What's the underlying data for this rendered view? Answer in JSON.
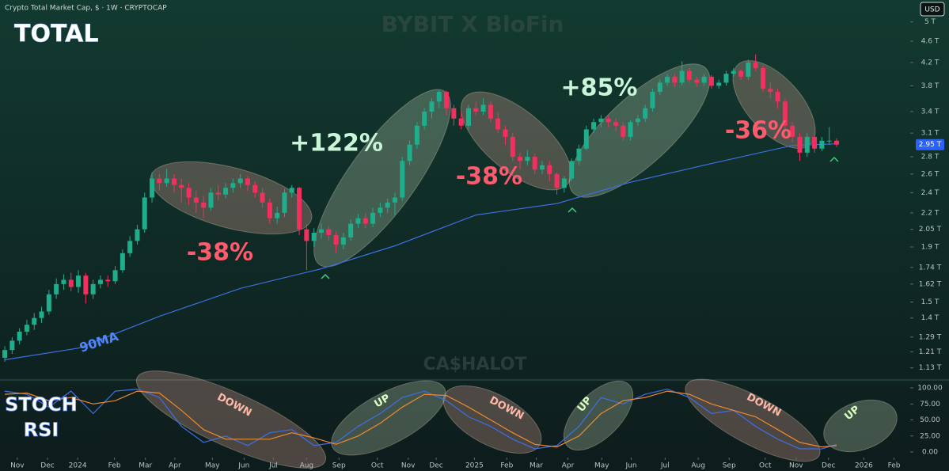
{
  "header": "Crypto Total Market Cap, $ · 1W · CRYPTOCAP",
  "currency": "USD",
  "watermarks": [
    "BYBIT X BloFin",
    "CA$HALOT"
  ],
  "chart_data": [
    {
      "type": "candlestick",
      "title": "TOTAL",
      "log_scale": true,
      "up_color": "#1fae8c",
      "down_color": "#f2305f",
      "xlim": [
        -0.65,
        123.0
      ],
      "ylim": [
        1.08,
        5.22
      ],
      "yticks": [
        {
          "value": 5,
          "label": "5 T"
        },
        {
          "value": 4.6,
          "label": "4.6 T"
        },
        {
          "value": 4.2,
          "label": "4.2 T"
        },
        {
          "value": 3.8,
          "label": "3.8 T"
        },
        {
          "value": 3.4,
          "label": "3.4 T"
        },
        {
          "value": 3.1,
          "label": "3.1 T"
        },
        {
          "value": 2.8,
          "label": "2.8 T"
        },
        {
          "value": 2.6,
          "label": "2.6 T"
        },
        {
          "value": 2.4,
          "label": "2.4 T"
        },
        {
          "value": 2.2,
          "label": "2.2 T"
        },
        {
          "value": 2.05,
          "label": "2.05 T"
        },
        {
          "value": 1.9,
          "label": "1.9 T"
        },
        {
          "value": 1.74,
          "label": "1.74 T"
        },
        {
          "value": 1.62,
          "label": "1.62 T"
        },
        {
          "value": 1.5,
          "label": "1.5 T"
        },
        {
          "value": 1.4,
          "label": "1.4 T"
        },
        {
          "value": 1.29,
          "label": "1.29 T"
        },
        {
          "value": 1.21,
          "label": "1.21 T"
        },
        {
          "value": 1.13,
          "label": "1.13 T"
        }
      ],
      "last_price": {
        "value": 2.95,
        "label": "2.95 T"
      },
      "candles": [
        [
          1.18,
          1.24,
          1.16,
          1.22
        ],
        [
          1.22,
          1.29,
          1.2,
          1.27
        ],
        [
          1.27,
          1.34,
          1.25,
          1.32
        ],
        [
          1.32,
          1.39,
          1.3,
          1.36
        ],
        [
          1.36,
          1.43,
          1.33,
          1.4
        ],
        [
          1.4,
          1.47,
          1.37,
          1.44
        ],
        [
          1.44,
          1.58,
          1.42,
          1.55
        ],
        [
          1.55,
          1.66,
          1.52,
          1.62
        ],
        [
          1.62,
          1.69,
          1.58,
          1.65
        ],
        [
          1.65,
          1.7,
          1.57,
          1.6
        ],
        [
          1.6,
          1.72,
          1.56,
          1.68
        ],
        [
          1.68,
          1.7,
          1.49,
          1.55
        ],
        [
          1.55,
          1.65,
          1.52,
          1.62
        ],
        [
          1.62,
          1.68,
          1.59,
          1.65
        ],
        [
          1.65,
          1.68,
          1.6,
          1.64
        ],
        [
          1.64,
          1.75,
          1.62,
          1.72
        ],
        [
          1.72,
          1.88,
          1.7,
          1.85
        ],
        [
          1.85,
          1.99,
          1.82,
          1.95
        ],
        [
          1.95,
          2.09,
          1.92,
          2.05
        ],
        [
          2.05,
          2.4,
          2.02,
          2.35
        ],
        [
          2.35,
          2.62,
          2.3,
          2.55
        ],
        [
          2.55,
          2.6,
          2.42,
          2.5
        ],
        [
          2.5,
          2.66,
          2.46,
          2.55
        ],
        [
          2.55,
          2.6,
          2.4,
          2.48
        ],
        [
          2.48,
          2.55,
          2.3,
          2.45
        ],
        [
          2.45,
          2.5,
          2.28,
          2.35
        ],
        [
          2.35,
          2.42,
          2.2,
          2.3
        ],
        [
          2.3,
          2.36,
          2.15,
          2.25
        ],
        [
          2.25,
          2.45,
          2.22,
          2.4
        ],
        [
          2.4,
          2.48,
          2.32,
          2.38
        ],
        [
          2.38,
          2.5,
          2.34,
          2.45
        ],
        [
          2.45,
          2.55,
          2.4,
          2.5
        ],
        [
          2.5,
          2.6,
          2.45,
          2.55
        ],
        [
          2.55,
          2.58,
          2.42,
          2.48
        ],
        [
          2.48,
          2.52,
          2.35,
          2.4
        ],
        [
          2.4,
          2.45,
          2.25,
          2.3
        ],
        [
          2.3,
          2.34,
          2.1,
          2.15
        ],
        [
          2.15,
          2.26,
          2.1,
          2.2
        ],
        [
          2.2,
          2.44,
          2.16,
          2.4
        ],
        [
          2.4,
          2.48,
          2.35,
          2.45
        ],
        [
          2.45,
          2.46,
          2.0,
          2.05
        ],
        [
          2.05,
          2.1,
          1.72,
          1.95
        ],
        [
          1.95,
          2.06,
          1.9,
          2.02
        ],
        [
          2.02,
          2.1,
          1.97,
          2.05
        ],
        [
          2.05,
          2.08,
          1.95,
          2.0
        ],
        [
          2.0,
          2.03,
          1.85,
          1.92
        ],
        [
          1.92,
          2.02,
          1.88,
          1.98
        ],
        [
          1.98,
          2.14,
          1.95,
          2.1
        ],
        [
          2.1,
          2.19,
          2.06,
          2.15
        ],
        [
          2.15,
          2.2,
          2.06,
          2.1
        ],
        [
          2.1,
          2.25,
          2.07,
          2.2
        ],
        [
          2.2,
          2.3,
          2.16,
          2.25
        ],
        [
          2.25,
          2.34,
          2.2,
          2.3
        ],
        [
          2.3,
          2.4,
          2.18,
          2.35
        ],
        [
          2.35,
          2.8,
          2.32,
          2.75
        ],
        [
          2.75,
          3.0,
          2.7,
          2.95
        ],
        [
          2.95,
          3.25,
          2.9,
          3.2
        ],
        [
          3.2,
          3.45,
          3.15,
          3.4
        ],
        [
          3.4,
          3.6,
          3.3,
          3.55
        ],
        [
          3.55,
          3.72,
          3.45,
          3.7
        ],
        [
          3.7,
          3.72,
          3.35,
          3.45
        ],
        [
          3.45,
          3.5,
          3.2,
          3.3
        ],
        [
          3.3,
          3.4,
          3.15,
          3.2
        ],
        [
          3.2,
          3.5,
          3.15,
          3.45
        ],
        [
          3.45,
          3.55,
          3.35,
          3.4
        ],
        [
          3.4,
          3.6,
          3.35,
          3.5
        ],
        [
          3.5,
          3.55,
          3.25,
          3.3
        ],
        [
          3.3,
          3.4,
          3.1,
          3.15
        ],
        [
          3.15,
          3.2,
          2.95,
          3.05
        ],
        [
          3.05,
          3.1,
          2.75,
          2.8
        ],
        [
          2.8,
          2.85,
          2.65,
          2.75
        ],
        [
          2.75,
          2.88,
          2.7,
          2.8
        ],
        [
          2.8,
          2.84,
          2.6,
          2.65
        ],
        [
          2.65,
          2.75,
          2.6,
          2.7
        ],
        [
          2.7,
          2.75,
          2.52,
          2.6
        ],
        [
          2.6,
          2.62,
          2.38,
          2.45
        ],
        [
          2.45,
          2.58,
          2.4,
          2.55
        ],
        [
          2.55,
          2.78,
          2.52,
          2.75
        ],
        [
          2.75,
          2.95,
          2.7,
          2.9
        ],
        [
          2.9,
          3.2,
          2.88,
          3.15
        ],
        [
          3.15,
          3.3,
          3.1,
          3.25
        ],
        [
          3.25,
          3.35,
          3.18,
          3.3
        ],
        [
          3.3,
          3.35,
          3.18,
          3.25
        ],
        [
          3.25,
          3.3,
          3.12,
          3.2
        ],
        [
          3.2,
          3.25,
          3.0,
          3.05
        ],
        [
          3.05,
          3.28,
          3.0,
          3.25
        ],
        [
          3.25,
          3.35,
          3.2,
          3.3
        ],
        [
          3.3,
          3.5,
          3.25,
          3.45
        ],
        [
          3.45,
          3.75,
          3.4,
          3.7
        ],
        [
          3.7,
          3.9,
          3.65,
          3.85
        ],
        [
          3.85,
          4.0,
          3.8,
          3.95
        ],
        [
          3.95,
          4.0,
          3.78,
          3.85
        ],
        [
          3.85,
          4.22,
          3.8,
          4.05
        ],
        [
          4.05,
          4.1,
          3.85,
          3.9
        ],
        [
          3.9,
          3.95,
          3.78,
          3.85
        ],
        [
          3.85,
          4.0,
          3.8,
          3.95
        ],
        [
          3.95,
          3.98,
          3.75,
          3.8
        ],
        [
          3.8,
          3.9,
          3.75,
          3.85
        ],
        [
          3.85,
          4.05,
          3.8,
          4.0
        ],
        [
          4.0,
          4.1,
          3.95,
          4.05
        ],
        [
          4.05,
          4.08,
          3.9,
          3.95
        ],
        [
          3.95,
          4.25,
          3.9,
          4.2
        ],
        [
          4.2,
          4.35,
          4.05,
          4.1
        ],
        [
          4.1,
          4.15,
          3.7,
          3.75
        ],
        [
          3.75,
          3.85,
          3.6,
          3.7
        ],
        [
          3.7,
          3.75,
          3.45,
          3.55
        ],
        [
          3.55,
          3.6,
          3.15,
          3.2
        ],
        [
          3.2,
          3.25,
          2.98,
          3.05
        ],
        [
          3.05,
          3.1,
          2.75,
          2.85
        ],
        [
          2.85,
          3.1,
          2.8,
          3.05
        ],
        [
          3.05,
          3.08,
          2.85,
          2.9
        ],
        [
          2.9,
          3.05,
          2.87,
          3.0
        ],
        [
          3.0,
          3.18,
          2.95,
          3.0
        ],
        [
          3.0,
          3.03,
          2.92,
          2.95
        ]
      ],
      "series": [
        {
          "name": "90MA",
          "color": "#3d6fe0",
          "x": [
            0,
            10,
            21,
            32,
            43,
            53,
            64,
            75,
            85,
            96,
            107,
            113
          ],
          "values": [
            1.17,
            1.23,
            1.41,
            1.59,
            1.73,
            1.91,
            2.18,
            2.29,
            2.51,
            2.72,
            2.94,
            2.96
          ]
        }
      ],
      "annotations": [
        "-38%",
        "+122%",
        "-38%",
        "+85%",
        "-36%"
      ]
    },
    {
      "type": "line",
      "title": [
        "STOCH",
        "RSI"
      ],
      "xlim": [
        -0.65,
        123.0
      ],
      "ylim": [
        -8.6,
        109.9
      ],
      "yticks": [
        {
          "value": 100,
          "label": "100.00"
        },
        {
          "value": 75,
          "label": "75.00"
        },
        {
          "value": 50,
          "label": "50.00"
        },
        {
          "value": 25,
          "label": "25.00"
        },
        {
          "value": 0,
          "label": "0.00"
        }
      ],
      "xticks": [
        {
          "value": 1.7,
          "label": "Nov"
        },
        {
          "value": 5.8,
          "label": "Dec"
        },
        {
          "value": 9.9,
          "label": "2024"
        },
        {
          "value": 14.9,
          "label": "Feb"
        },
        {
          "value": 19.1,
          "label": "Mar"
        },
        {
          "value": 23.1,
          "label": "Apr"
        },
        {
          "value": 28.2,
          "label": "May"
        },
        {
          "value": 32.5,
          "label": "Jun"
        },
        {
          "value": 36.5,
          "label": "Jul"
        },
        {
          "value": 41.0,
          "label": "Aug"
        },
        {
          "value": 45.4,
          "label": "Sep"
        },
        {
          "value": 50.6,
          "label": "Oct"
        },
        {
          "value": 54.8,
          "label": "Nov"
        },
        {
          "value": 58.6,
          "label": "Dec"
        },
        {
          "value": 63.8,
          "label": "2025"
        },
        {
          "value": 68.2,
          "label": "Feb"
        },
        {
          "value": 72.2,
          "label": "Mar"
        },
        {
          "value": 76.5,
          "label": "Apr"
        },
        {
          "value": 81.1,
          "label": "May"
        },
        {
          "value": 85.1,
          "label": "Jun"
        },
        {
          "value": 89.7,
          "label": "Jul"
        },
        {
          "value": 94.2,
          "label": "Aug"
        },
        {
          "value": 98.4,
          "label": "Sep"
        },
        {
          "value": 103.3,
          "label": "Oct"
        },
        {
          "value": 107.5,
          "label": "Nov"
        },
        {
          "value": 111.9,
          "label": "Dec"
        },
        {
          "value": 116.7,
          "label": "2026"
        },
        {
          "value": 120.8,
          "label": "Feb"
        }
      ],
      "series": [
        {
          "color": "#3f6fe6",
          "x": [
            0,
            3,
            6,
            9,
            12,
            15,
            18,
            21,
            24,
            27,
            30,
            33,
            36,
            39,
            42,
            45,
            48,
            51,
            54,
            57,
            60,
            63,
            66,
            69,
            72,
            75,
            78,
            81,
            84,
            87,
            90,
            93,
            96,
            99,
            102,
            105,
            108,
            111,
            113
          ],
          "values": [
            95,
            90,
            70,
            95,
            60,
            95,
            98,
            85,
            40,
            15,
            25,
            10,
            30,
            35,
            10,
            15,
            40,
            60,
            85,
            95,
            80,
            55,
            40,
            20,
            5,
            10,
            40,
            85,
            75,
            90,
            98,
            85,
            60,
            65,
            40,
            20,
            5,
            5,
            12
          ]
        },
        {
          "color": "#f08a2c",
          "x": [
            0,
            3,
            6,
            9,
            12,
            15,
            18,
            21,
            24,
            27,
            30,
            33,
            36,
            39,
            42,
            45,
            48,
            51,
            54,
            57,
            60,
            63,
            66,
            69,
            72,
            75,
            78,
            81,
            84,
            87,
            90,
            93,
            96,
            99,
            102,
            105,
            108,
            111,
            113
          ],
          "values": [
            90,
            92,
            80,
            85,
            75,
            80,
            95,
            92,
            65,
            35,
            20,
            20,
            20,
            30,
            22,
            12,
            25,
            45,
            70,
            90,
            88,
            70,
            50,
            30,
            12,
            8,
            25,
            60,
            80,
            85,
            95,
            90,
            75,
            65,
            55,
            35,
            15,
            8,
            10
          ]
        }
      ],
      "annotations": [
        "DOWN",
        "UP",
        "DOWN",
        "UP",
        "DOWN",
        "UP"
      ]
    }
  ]
}
